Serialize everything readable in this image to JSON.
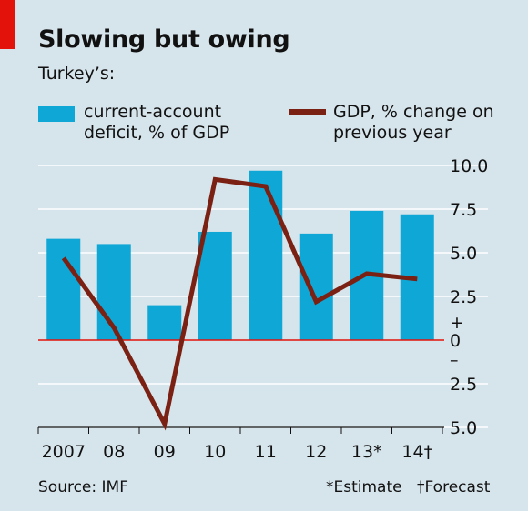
{
  "header": {
    "title": "Slowing but owing",
    "subtitle": "Turkey’s:"
  },
  "legend": {
    "bar_label": "current-account deficit, % of GDP",
    "line_label": "GDP, % change on previous year"
  },
  "footer": {
    "source": "Source: IMF",
    "note_estimate": "*Estimate",
    "note_forecast": "†Forecast"
  },
  "colors": {
    "background": "#d6e4eb",
    "bar": "#0fa7d6",
    "line": "#7b2113",
    "zero_line": "#e3120b",
    "grid": "#ffffff",
    "accent": "#e3120b"
  },
  "chart_data": {
    "type": "bar+line",
    "categories": [
      "2007",
      "08",
      "09",
      "10",
      "11",
      "12",
      "13*",
      "14†"
    ],
    "series": [
      {
        "name": "current-account deficit, % of GDP",
        "type": "bar",
        "values": [
          5.8,
          5.5,
          2.0,
          6.2,
          9.7,
          6.1,
          7.4,
          7.2
        ]
      },
      {
        "name": "GDP, % change on previous year",
        "type": "line",
        "values": [
          4.7,
          0.7,
          -4.8,
          9.2,
          8.8,
          2.2,
          3.8,
          3.5
        ]
      }
    ],
    "yaxis": {
      "ticks": [
        10.0,
        7.5,
        5.0,
        2.5,
        0,
        -2.5,
        -5.0
      ],
      "tick_labels": [
        "10.0",
        "7.5",
        "5.0",
        "2.5",
        "0",
        "2.5",
        "5.0"
      ],
      "sign_plus": "+",
      "sign_minus": "–",
      "range": [
        -5,
        10
      ],
      "position": "right"
    },
    "grid": true
  }
}
